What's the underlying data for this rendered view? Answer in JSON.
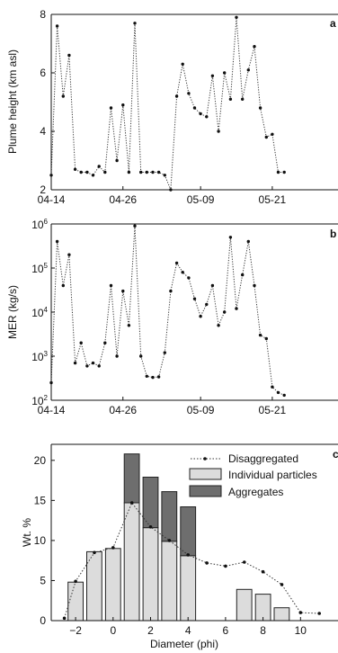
{
  "chart_data": [
    {
      "type": "line",
      "panel_label": "a",
      "ylabel": "Plume height (km asl)",
      "xlim": [
        "2010-04-14",
        "2010-06-01"
      ],
      "ylim": [
        2,
        8
      ],
      "xticks": [
        "04-14",
        "04-26",
        "05-09",
        "05-21"
      ],
      "yticks": [
        2,
        4,
        6,
        8
      ],
      "x": [
        "2010-04-14",
        "2010-04-15",
        "2010-04-16",
        "2010-04-17",
        "2010-04-18",
        "2010-04-19",
        "2010-04-20",
        "2010-04-21",
        "2010-04-22",
        "2010-04-23",
        "2010-04-24",
        "2010-04-25",
        "2010-04-26",
        "2010-04-27",
        "2010-04-28",
        "2010-04-29",
        "2010-04-30",
        "2010-05-01",
        "2010-05-02",
        "2010-05-03",
        "2010-05-04",
        "2010-05-05",
        "2010-05-06",
        "2010-05-07",
        "2010-05-08",
        "2010-05-09",
        "2010-05-10",
        "2010-05-11",
        "2010-05-12",
        "2010-05-13",
        "2010-05-14",
        "2010-05-15",
        "2010-05-16",
        "2010-05-17",
        "2010-05-18",
        "2010-05-19",
        "2010-05-20",
        "2010-05-21",
        "2010-05-22",
        "2010-05-23"
      ],
      "y": [
        2.5,
        7.6,
        5.2,
        6.6,
        2.7,
        2.6,
        2.6,
        2.5,
        2.8,
        2.6,
        4.8,
        3.0,
        4.9,
        2.6,
        7.7,
        2.6,
        2.6,
        2.6,
        2.6,
        2.5,
        2.0,
        5.2,
        6.3,
        5.3,
        4.8,
        4.6,
        4.5,
        5.9,
        4.0,
        6.0,
        5.1,
        7.9,
        5.1,
        6.1,
        6.9,
        4.8,
        3.8,
        3.9,
        2.6,
        2.6
      ]
    },
    {
      "type": "line",
      "panel_label": "b",
      "ylabel": "MER (kg/s)",
      "yscale": "log",
      "xlim": [
        "2010-04-14",
        "2010-06-01"
      ],
      "ylim": [
        100,
        1000000
      ],
      "xticks": [
        "04-14",
        "04-26",
        "05-09",
        "05-21"
      ],
      "yticks": [
        100,
        1000,
        10000,
        100000,
        1000000
      ],
      "ytick_labels": [
        {
          "base": "10",
          "exp": "2"
        },
        {
          "base": "10",
          "exp": "3"
        },
        {
          "base": "10",
          "exp": "4"
        },
        {
          "base": "10",
          "exp": "5"
        },
        {
          "base": "10",
          "exp": "6"
        }
      ],
      "x": [
        "2010-04-14",
        "2010-04-15",
        "2010-04-16",
        "2010-04-17",
        "2010-04-18",
        "2010-04-19",
        "2010-04-20",
        "2010-04-21",
        "2010-04-22",
        "2010-04-23",
        "2010-04-24",
        "2010-04-25",
        "2010-04-26",
        "2010-04-27",
        "2010-04-28",
        "2010-04-29",
        "2010-04-30",
        "2010-05-01",
        "2010-05-02",
        "2010-05-03",
        "2010-05-04",
        "2010-05-05",
        "2010-05-06",
        "2010-05-07",
        "2010-05-08",
        "2010-05-09",
        "2010-05-10",
        "2010-05-11",
        "2010-05-12",
        "2010-05-13",
        "2010-05-14",
        "2010-05-15",
        "2010-05-16",
        "2010-05-17",
        "2010-05-18",
        "2010-05-19",
        "2010-05-20",
        "2010-05-21",
        "2010-05-22",
        "2010-05-23"
      ],
      "y": [
        250,
        400000,
        40000,
        200000,
        700,
        2000,
        600,
        700,
        600,
        2000,
        40000,
        1000,
        30000,
        5000,
        900000,
        1000,
        350,
        330,
        340,
        1200,
        30000,
        130000,
        80000,
        60000,
        20000,
        8000,
        15000,
        40000,
        5000,
        10000,
        500000,
        12000,
        70000,
        400000,
        40000,
        3000,
        2500,
        200,
        150,
        130
      ]
    },
    {
      "type": "bar",
      "panel_label": "c",
      "xlabel": "Diameter (phi)",
      "ylabel": "Wt. %",
      "xlim": [
        -3.3,
        12
      ],
      "ylim": [
        0,
        22
      ],
      "xticks": [
        "−2",
        "0",
        "2",
        "4",
        "6",
        "8",
        "10"
      ],
      "yticks": [
        "0",
        "5",
        "10",
        "15",
        "20"
      ],
      "legend": [
        "Disaggregated",
        "Individual particles",
        "Aggregates"
      ],
      "legend_position": "top-right",
      "bins": [
        -2,
        -1,
        0,
        1,
        2,
        3,
        4,
        5,
        6,
        7,
        8,
        9,
        10
      ],
      "individual_particles": [
        4.8,
        8.6,
        9.0,
        14.7,
        11.6,
        9.9,
        8.1,
        0,
        0,
        3.9,
        3.3,
        1.6,
        0
      ],
      "aggregates": [
        0,
        0,
        0,
        6.1,
        6.3,
        6.2,
        6.1,
        0,
        0,
        0,
        0,
        0,
        0
      ],
      "disaggregated": [
        {
          "x": -2.6,
          "y": 0.3
        },
        {
          "x": -2,
          "y": 4.9
        },
        {
          "x": -1,
          "y": 8.5
        },
        {
          "x": 0,
          "y": 9.1
        },
        {
          "x": 1,
          "y": 14.7
        },
        {
          "x": 2,
          "y": 11.7
        },
        {
          "x": 3,
          "y": 10.0
        },
        {
          "x": 4,
          "y": 8.2
        },
        {
          "x": 5,
          "y": 7.2
        },
        {
          "x": 6,
          "y": 6.8
        },
        {
          "x": 7,
          "y": 7.3
        },
        {
          "x": 8,
          "y": 6.1
        },
        {
          "x": 9,
          "y": 4.5
        },
        {
          "x": 10,
          "y": 1.0
        },
        {
          "x": 11,
          "y": 0.9
        }
      ]
    }
  ]
}
